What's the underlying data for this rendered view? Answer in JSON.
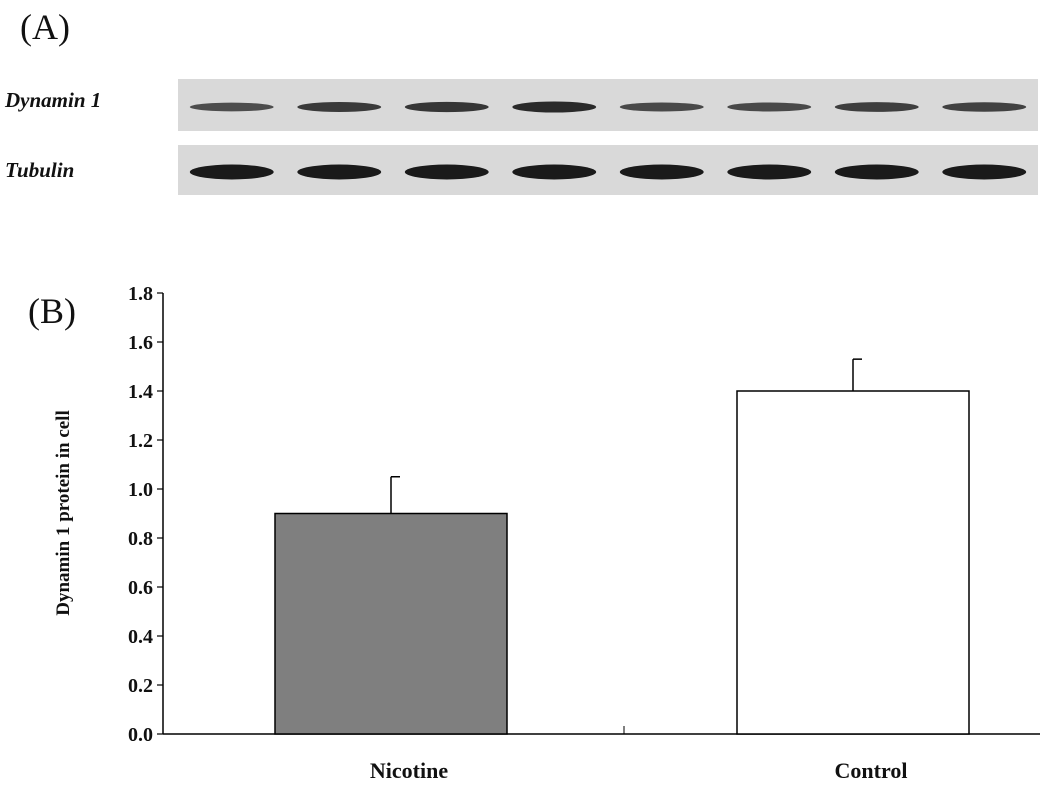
{
  "panels": {
    "a_label": "(A)",
    "b_label": "(B)"
  },
  "blot": {
    "rows": [
      {
        "label": "Dynamin 1",
        "band_color": "#2a2a2a",
        "band_intensity": [
          0.55,
          0.8,
          0.85,
          1.0,
          0.6,
          0.6,
          0.75,
          0.7
        ]
      },
      {
        "label": "Tubulin",
        "band_color": "#1a1a1a",
        "band_intensity": [
          1.0,
          1.0,
          1.0,
          1.0,
          1.0,
          1.0,
          1.0,
          1.0
        ]
      }
    ],
    "background": "#d9d9d9"
  },
  "chart_data": {
    "type": "bar",
    "categories": [
      "Nicotine",
      "Control"
    ],
    "values": [
      0.9,
      1.4
    ],
    "errors": [
      0.15,
      0.13
    ],
    "bar_colors": [
      "#7f7f7f",
      "#ffffff"
    ],
    "ylabel": "Dynamin 1 protein in cell",
    "ylim": [
      0.0,
      1.8
    ],
    "yticks": [
      "0.0",
      "0.2",
      "0.4",
      "0.6",
      "0.8",
      "1.0",
      "1.2",
      "1.4",
      "1.6",
      "1.8"
    ],
    "grid": false
  }
}
